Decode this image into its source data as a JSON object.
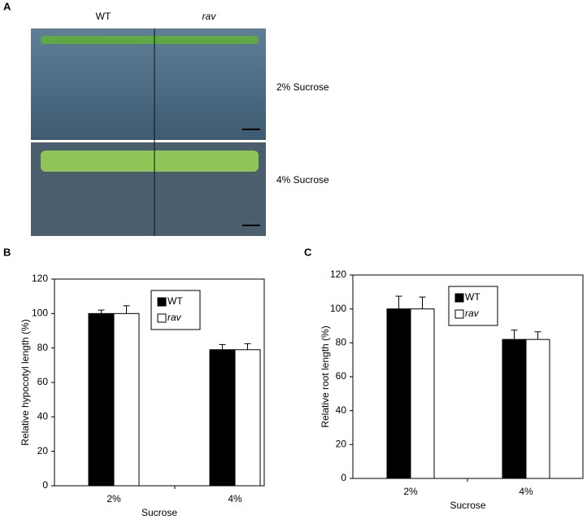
{
  "photo": {
    "label": "A",
    "columns": [
      "WT",
      "rav"
    ],
    "rows": [
      "2% Sucrose",
      "4% Sucrose"
    ]
  },
  "chart_data": [
    {
      "type": "bar",
      "label": "B",
      "y_label": "Relative hypocotyl length  (%)",
      "x_label": "Sucrose",
      "categories": [
        "2%",
        "4%"
      ],
      "series": [
        {
          "name": "WT",
          "color": "#000000",
          "values": [
            100,
            79
          ],
          "errors": [
            2,
            3
          ]
        },
        {
          "name": "rav",
          "color": "#ffffff",
          "values": [
            100,
            79
          ],
          "errors": [
            4.5,
            3.5
          ]
        }
      ],
      "ylim": [
        0,
        120
      ],
      "yticks": [
        0,
        20,
        40,
        60,
        80,
        100,
        120
      ]
    },
    {
      "type": "bar",
      "label": "C",
      "y_label": "Relative root length (%)",
      "x_label": "Sucrose",
      "categories": [
        "2%",
        "4%"
      ],
      "series": [
        {
          "name": "WT",
          "color": "#000000",
          "values": [
            100,
            82
          ],
          "errors": [
            7.5,
            5.5
          ]
        },
        {
          "name": "rav",
          "color": "#ffffff",
          "values": [
            100,
            82
          ],
          "errors": [
            7,
            4.5
          ]
        }
      ],
      "ylim": [
        0,
        120
      ],
      "yticks": [
        0,
        20,
        40,
        60,
        80,
        100,
        120
      ]
    }
  ]
}
